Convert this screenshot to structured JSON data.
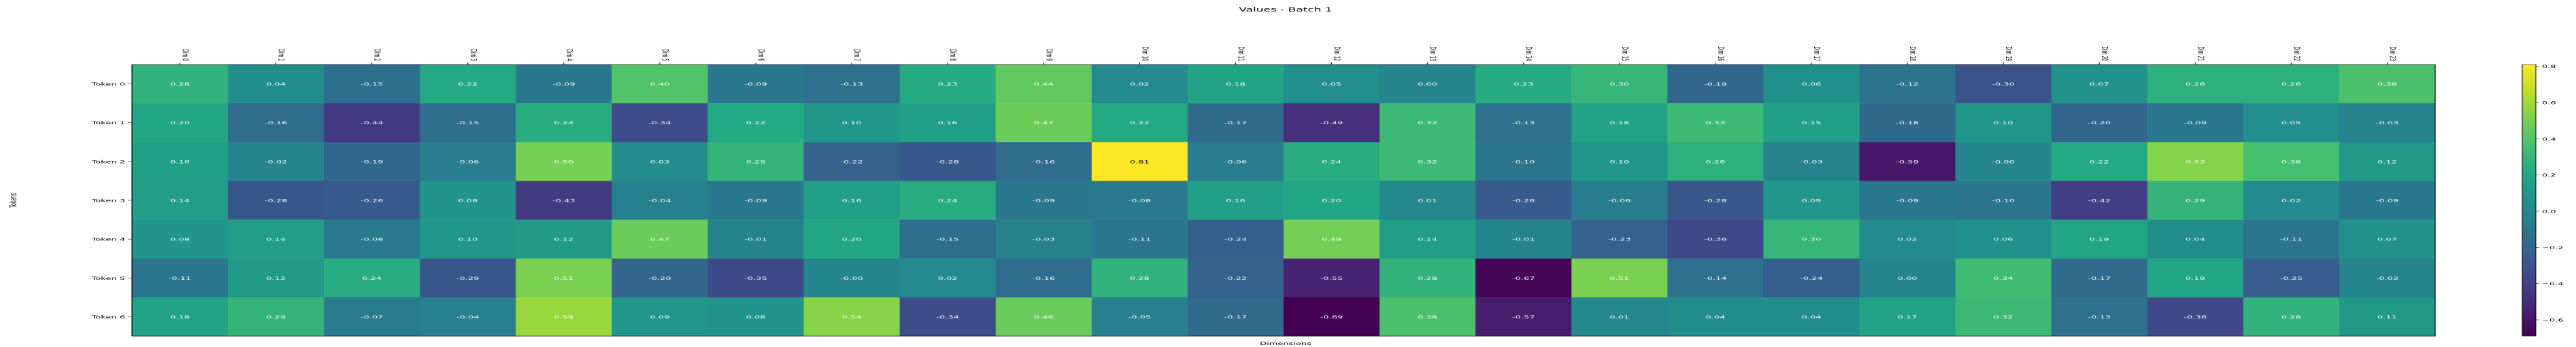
{
  "chart_data": {
    "type": "heatmap",
    "title": "Values - Batch 1",
    "xlabel": "Dimensions",
    "ylabel": "Tokens",
    "x_categories": [
      "Dim 0",
      "Dim 1",
      "Dim 2",
      "Dim 3",
      "Dim 4",
      "Dim 5",
      "Dim 6",
      "Dim 7",
      "Dim 8",
      "Dim 9",
      "Dim 10",
      "Dim 11",
      "Dim 12",
      "Dim 13",
      "Dim 14",
      "Dim 15",
      "Dim 16",
      "Dim 17",
      "Dim 18",
      "Dim 19",
      "Dim 20",
      "Dim 21",
      "Dim 22",
      "Dim 23"
    ],
    "y_categories": [
      "Token 0",
      "Token 1",
      "Token 2",
      "Token 3",
      "Token 4",
      "Token 5",
      "Token 6"
    ],
    "values": [
      [
        0.28,
        0.04,
        -0.15,
        0.22,
        -0.09,
        0.4,
        -0.09,
        -0.13,
        0.23,
        0.44,
        0.02,
        0.18,
        0.05,
        0.0,
        0.23,
        0.3,
        -0.19,
        0.06,
        -0.12,
        -0.3,
        0.07,
        0.26,
        0.26,
        0.38
      ],
      [
        0.2,
        -0.16,
        -0.44,
        -0.15,
        0.24,
        -0.34,
        0.22,
        0.1,
        0.16,
        0.47,
        0.22,
        -0.17,
        -0.49,
        0.32,
        -0.13,
        0.18,
        0.33,
        0.15,
        -0.18,
        0.1,
        -0.2,
        -0.09,
        0.05,
        -0.03
      ],
      [
        0.16,
        -0.02,
        -0.19,
        -0.06,
        0.5,
        0.03,
        0.29,
        -0.22,
        -0.28,
        -0.16,
        0.81,
        -0.06,
        0.24,
        0.32,
        -0.1,
        0.1,
        0.26,
        -0.03,
        -0.59,
        -0.0,
        0.22,
        0.53,
        0.36,
        0.12
      ],
      [
        0.14,
        -0.28,
        -0.26,
        0.08,
        -0.43,
        -0.04,
        -0.09,
        0.16,
        0.24,
        -0.09,
        -0.08,
        0.16,
        0.2,
        0.01,
        -0.26,
        -0.06,
        -0.28,
        0.09,
        -0.09,
        -0.1,
        -0.42,
        0.29,
        0.02,
        -0.09
      ],
      [
        0.08,
        0.14,
        -0.08,
        0.1,
        0.12,
        0.47,
        -0.01,
        0.2,
        -0.15,
        -0.03,
        -0.11,
        -0.24,
        0.49,
        0.14,
        -0.01,
        -0.23,
        -0.36,
        0.3,
        0.02,
        0.06,
        0.19,
        0.04,
        -0.11,
        0.07
      ],
      [
        -0.11,
        0.12,
        0.24,
        -0.29,
        0.51,
        -0.2,
        -0.35,
        -0.0,
        0.02,
        -0.16,
        0.28,
        -0.22,
        -0.55,
        0.28,
        -0.67,
        0.51,
        -0.14,
        -0.24,
        0.0,
        0.34,
        -0.17,
        0.19,
        -0.25,
        -0.02
      ],
      [
        0.18,
        0.29,
        -0.07,
        -0.04,
        0.58,
        0.09,
        0.08,
        0.54,
        -0.34,
        0.46,
        -0.05,
        -0.17,
        -0.69,
        0.38,
        -0.57,
        0.01,
        0.04,
        0.04,
        0.17,
        0.32,
        -0.13,
        -0.36,
        0.28,
        0.11
      ]
    ],
    "value_range": [
      -0.69,
      0.81
    ],
    "colormap": "viridis",
    "colorbar_ticks": [
      0.8,
      0.6,
      0.4,
      0.2,
      0.0,
      -0.2,
      -0.4,
      -0.6
    ],
    "colorbar_tick_labels": [
      "0.8",
      "0.6",
      "0.4",
      "0.2",
      "0.0",
      "−0.2",
      "−0.4",
      "−0.6"
    ],
    "grid": false,
    "legend": "colorbar-right"
  }
}
